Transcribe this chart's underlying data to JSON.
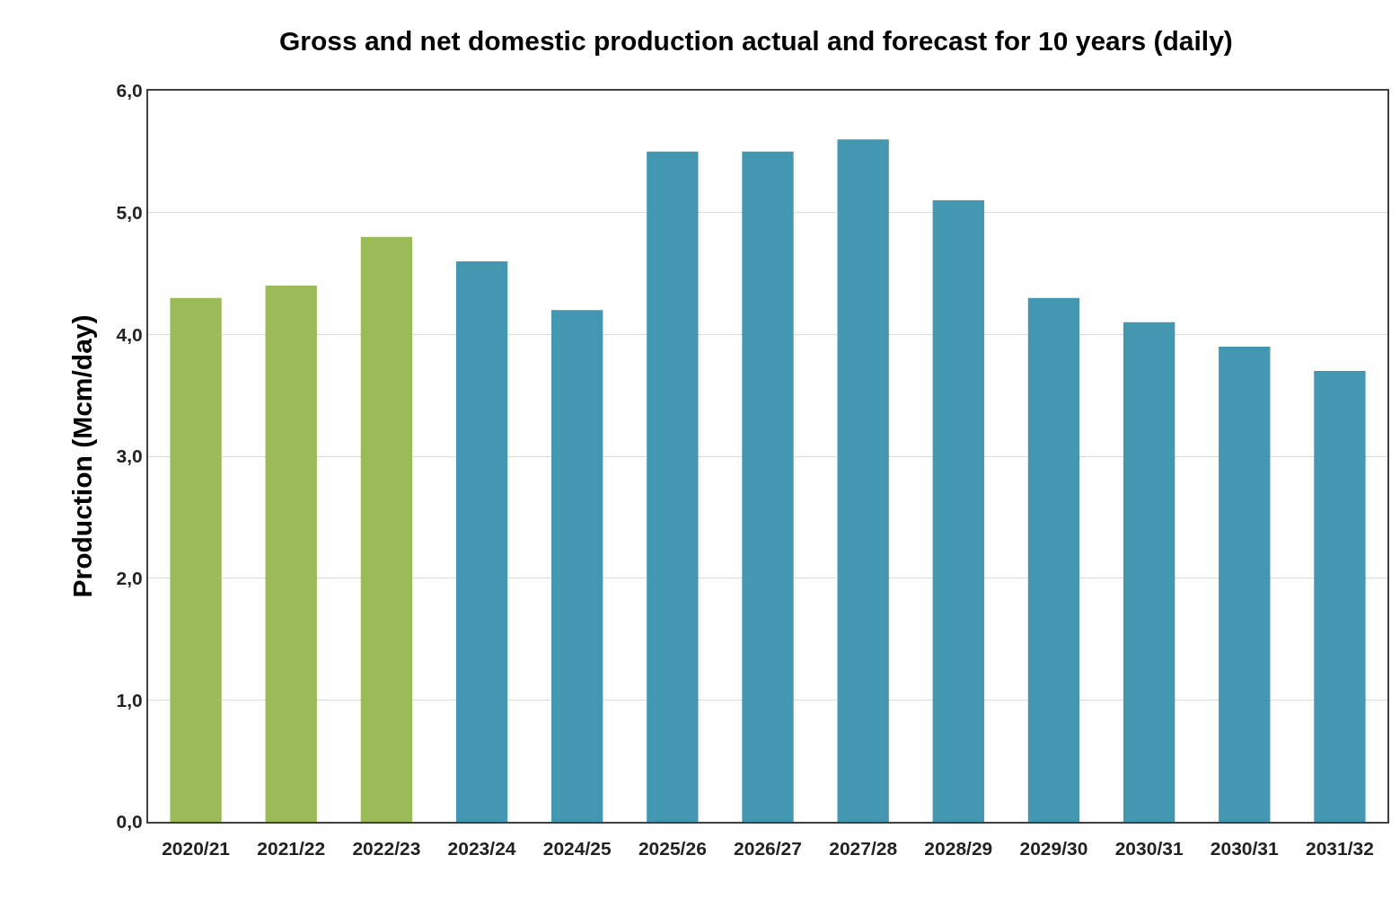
{
  "chart_data": {
    "type": "bar",
    "title": "Gross and net domestic production actual and forecast for 10 years (daily)",
    "ylabel": "Production (Mcm/day)",
    "categories": [
      "2020/21",
      "2021/22",
      "2022/23",
      "2023/24",
      "2024/25",
      "2025/26",
      "2026/27",
      "2027/28",
      "2028/29",
      "2029/30",
      "2030/31",
      "2030/31",
      "2031/32"
    ],
    "values": [
      4.3,
      4.4,
      4.8,
      4.6,
      4.2,
      5.5,
      5.5,
      5.6,
      5.1,
      4.3,
      4.1,
      3.9,
      3.7
    ],
    "colors": [
      "#9bbb59",
      "#9bbb59",
      "#9bbb59",
      "#4397b0",
      "#4397b0",
      "#4397b0",
      "#4397b0",
      "#4397b0",
      "#4397b0",
      "#4397b0",
      "#4397b0",
      "#4397b0",
      "#4397b0"
    ],
    "ylim": [
      0,
      6
    ],
    "yticks": [
      {
        "value": 0,
        "label": "0,0"
      },
      {
        "value": 1,
        "label": "1,0"
      },
      {
        "value": 2,
        "label": "2,0"
      },
      {
        "value": 3,
        "label": "3,0"
      },
      {
        "value": 4,
        "label": "4,0"
      },
      {
        "value": 5,
        "label": "5,0"
      },
      {
        "value": 6,
        "label": "6,0"
      }
    ],
    "grid": "y"
  }
}
